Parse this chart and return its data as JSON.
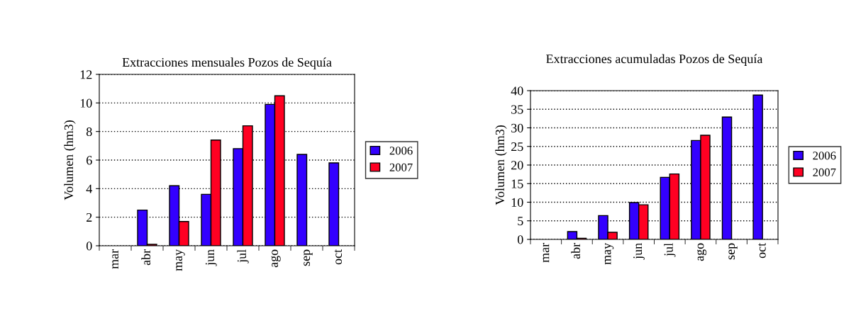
{
  "chart_data": [
    {
      "type": "bar",
      "title": "Extracciones mensuales Pozos de Sequía",
      "ylabel": "Volumen (hm3)",
      "categories": [
        "mar",
        "abr",
        "may",
        "jun",
        "jul",
        "ago",
        "sep",
        "oct"
      ],
      "series": [
        {
          "name": "2006",
          "color": "#3300ff",
          "values": [
            null,
            2.5,
            4.2,
            3.6,
            6.8,
            9.9,
            6.4,
            5.8
          ]
        },
        {
          "name": "2007",
          "color": "#ff0022",
          "values": [
            null,
            0.1,
            1.7,
            7.4,
            8.4,
            10.5,
            null,
            null
          ]
        }
      ],
      "ylim": [
        0,
        12
      ],
      "yticks": [
        0,
        2,
        4,
        6,
        8,
        10,
        12
      ],
      "grid": "y",
      "legend": "right"
    },
    {
      "type": "bar",
      "title": "Extracciones acumuladas Pozos de Sequía",
      "ylabel": "Volumen (hm3)",
      "categories": [
        "mar",
        "abr",
        "may",
        "jun",
        "jul",
        "ago",
        "sep",
        "oct"
      ],
      "series": [
        {
          "name": "2006",
          "color": "#3300ff",
          "values": [
            null,
            2.1,
            6.4,
            9.9,
            16.7,
            26.6,
            32.9,
            38.8
          ]
        },
        {
          "name": "2007",
          "color": "#ff0022",
          "values": [
            null,
            0.3,
            1.9,
            9.3,
            17.6,
            28.0,
            null,
            null
          ]
        }
      ],
      "ylim": [
        0,
        40
      ],
      "yticks": [
        0,
        5,
        10,
        15,
        20,
        25,
        30,
        35,
        40
      ],
      "grid": "y",
      "legend": "right"
    }
  ]
}
